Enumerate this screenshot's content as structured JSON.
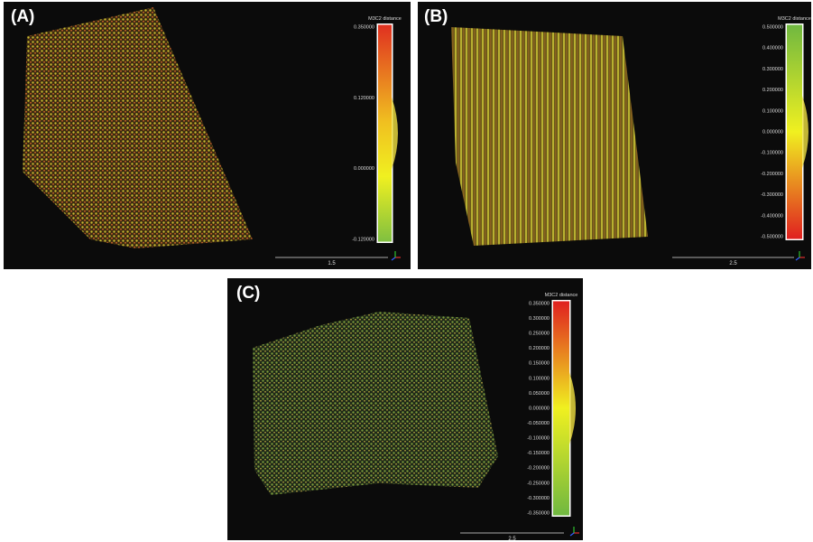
{
  "panels": [
    {
      "label": "(A)",
      "scale_title": "M3C2 distance",
      "ticks": [
        "0.350000",
        "0.120000",
        "0.000000",
        "-0.120000"
      ],
      "scale_bar": "1.5"
    },
    {
      "label": "(B)",
      "scale_title": "M3C2 distance",
      "ticks": [
        "0.500000",
        "0.400000",
        "0.300000",
        "0.200000",
        "0.100000",
        "0.000000",
        "-0.100000",
        "-0.200000",
        "-0.300000",
        "-0.400000",
        "-0.500000"
      ],
      "scale_bar": "2.5"
    },
    {
      "label": "(C)",
      "scale_title": "M3C2 distance",
      "ticks": [
        "0.350000",
        "0.300000",
        "0.250000",
        "0.200000",
        "0.150000",
        "0.100000",
        "0.050000",
        "0.000000",
        "-0.050000",
        "-0.100000",
        "-0.150000",
        "-0.200000",
        "-0.250000",
        "-0.300000",
        "-0.350000"
      ],
      "scale_bar": "2.5"
    }
  ]
}
